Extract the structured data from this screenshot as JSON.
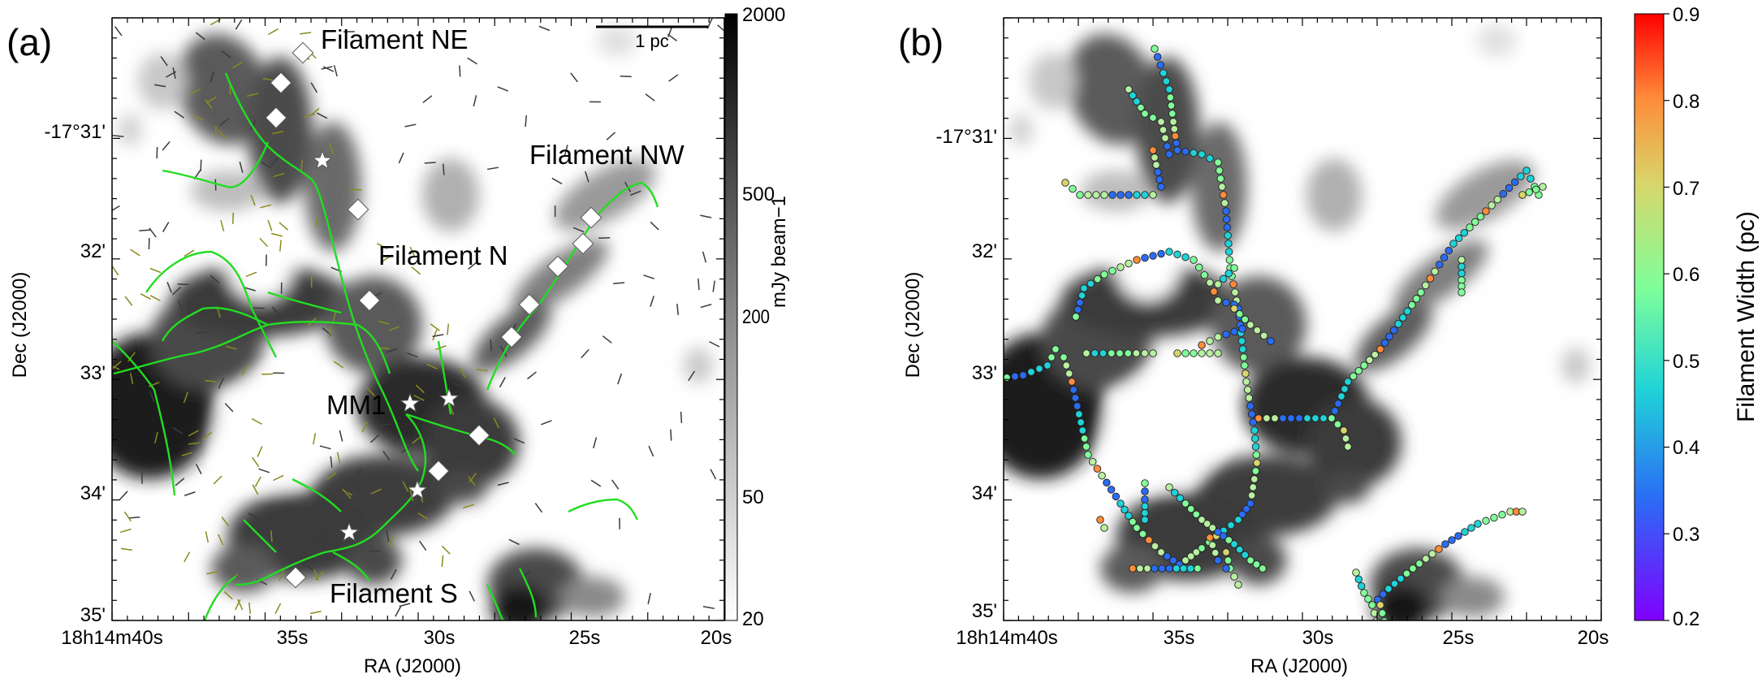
{
  "panels": [
    {
      "letter": "(a)",
      "xlabel": "RA (J2000)",
      "ylabel": "Dec (J2000)",
      "xticks": [
        "18h14m40s",
        "35s",
        "30s",
        "25s",
        "20s"
      ],
      "yticks": [
        "-17°31'",
        "32'",
        "33'",
        "34'",
        "35'"
      ],
      "filament_labels": [
        "Filament NE",
        "Filament NW",
        "Filament N",
        "MM1",
        "Filament S"
      ],
      "scalebar_label": "1 pc",
      "colorbar": {
        "label": "mJy beam−1",
        "ticks": [
          "2000",
          "500",
          "200",
          "50",
          "20"
        ],
        "scale": "log",
        "range": [
          20,
          2000
        ],
        "colormap": "gray_r"
      }
    },
    {
      "letter": "(b)",
      "xlabel": "RA (J2000)",
      "ylabel": "Dec (J2000)",
      "xticks": [
        "18h14m40s",
        "35s",
        "30s",
        "25s",
        "20s"
      ],
      "yticks": [
        "-17°31'",
        "32'",
        "33'",
        "34'",
        "35'"
      ],
      "colorbar": {
        "label": "Filament Width (pc)",
        "ticks": [
          "0.9",
          "0.8",
          "0.7",
          "0.6",
          "0.5",
          "0.4",
          "0.3",
          "0.2"
        ],
        "range": [
          0.2,
          0.9
        ],
        "colormap": "rainbow"
      }
    }
  ],
  "chart_data": [
    {
      "type": "heatmap",
      "xaxis": "RA (J2000)",
      "yaxis": "Dec (J2000)",
      "x_range_s": [
        40,
        20
      ],
      "y_range_arcmin": [
        -30.2,
        -35.1
      ],
      "overlays": [
        "filament skeletons (green)",
        "magnetic field segments",
        "cores (white diamonds)",
        "MM1 cores (white stars)"
      ],
      "marker_colors": {
        "skeleton": "#22dd22",
        "field": "#8a8a1e",
        "markers": "#ffffff"
      }
    },
    {
      "type": "scatter",
      "xaxis": "RA (J2000)",
      "yaxis": "Dec (J2000)",
      "x_range_s": [
        40,
        20
      ],
      "y_range_arcmin": [
        -30.2,
        -35.1
      ],
      "color_quantity": "Filament Width (pc)",
      "color_range": [
        0.2,
        0.9
      ]
    }
  ]
}
